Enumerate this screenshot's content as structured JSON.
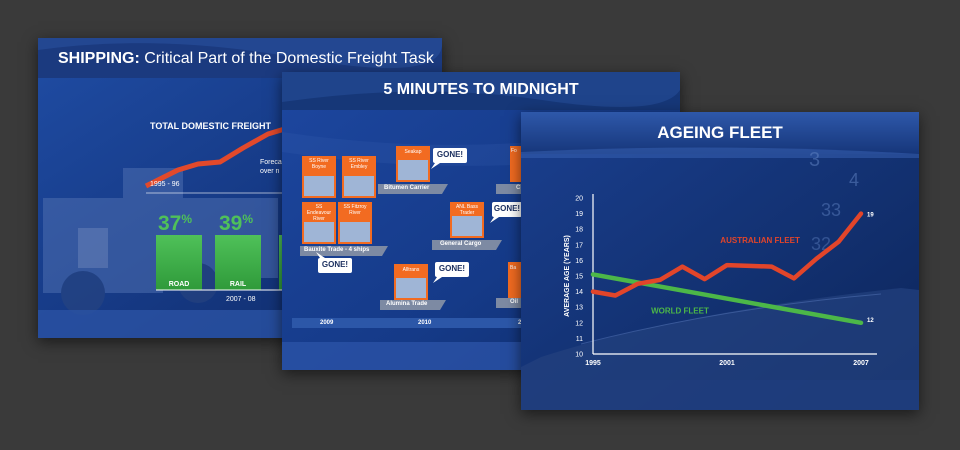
{
  "slide1": {
    "title_bold": "SHIPPING:",
    "title_rest": "Critical Part of the Domestic Freight Task",
    "chart_title": "TOTAL DOMESTIC FREIGHT",
    "start_year": "1995 - 96",
    "forecast_line1": "Foreca",
    "forecast_line2": "over n",
    "road_pct": "37",
    "rail_pct": "39",
    "pct_sign": "%",
    "road_label": "ROAD",
    "rail_label": "RAIL",
    "year_label": "2007 - 08",
    "colors": {
      "line": "#e2492b",
      "bar": "#3fae49"
    }
  },
  "slide2": {
    "title": "5 MINUTES TO MIDNIGHT",
    "cards": {
      "boyne": "SS River Boyne",
      "embley": "SS River Embley",
      "endeavour": "SS Endeavour River",
      "fitzroy": "SS Fitzroy River",
      "seakap": "Seakap",
      "anl": "ANL Bass Trader",
      "alltrans": "Alltrans",
      "partial1": "Fo",
      "partial2": "Ba"
    },
    "labels": {
      "bitumen": "Bitumen Carrier",
      "bauxite": "Bauxite Trade - 4 ships",
      "general": "General Cargo",
      "alumina": "Alumina Trade",
      "partial_c": "C",
      "partial_oil": "Oil"
    },
    "gone": "GONE!",
    "timeline": [
      "2009",
      "2010",
      "2"
    ],
    "colors": {
      "card": "#f26b21",
      "bubble": "#ffffff"
    }
  },
  "slide3": {
    "title": "AGEING FLEET",
    "bg_numbers": [
      "3",
      "4",
      "33",
      "32"
    ]
  },
  "chart_data": {
    "type": "line",
    "title": "AGEING FLEET",
    "ylabel": "AVERAGE AGE (YEARS)",
    "xlabel": "",
    "ylim": [
      10,
      20
    ],
    "yticks": [
      "20",
      "19",
      "18",
      "17",
      "16",
      "15",
      "14",
      "13",
      "12",
      "11",
      "10"
    ],
    "xticks": [
      "1995",
      "2001",
      "2007"
    ],
    "grid": false,
    "series": [
      {
        "name": "AUSTRALIAN FLEET",
        "color": "#e2452a",
        "x": [
          1995,
          1996,
          1997,
          1998,
          1999,
          2000,
          2001,
          2002,
          2003,
          2004,
          2005,
          2006,
          2007
        ],
        "values": [
          14.0,
          13.75,
          14.5,
          14.75,
          15.6,
          14.8,
          15.7,
          15.65,
          15.6,
          14.85,
          16.1,
          17.2,
          19.0
        ]
      },
      {
        "name": "WORLD FLEET",
        "color": "#4cb748",
        "x": [
          1995,
          2007
        ],
        "values": [
          15.1,
          12.0
        ]
      }
    ],
    "end_labels": [
      "19",
      "12"
    ]
  }
}
